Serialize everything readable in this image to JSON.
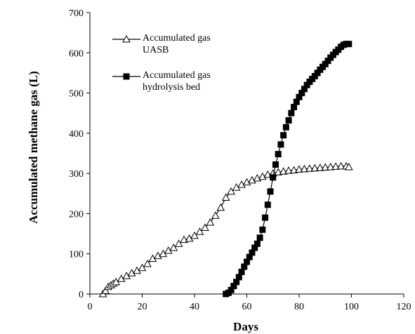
{
  "chart_data": {
    "type": "line",
    "x_label": "Days",
    "y_label": "Accumulated methane gas (L)",
    "xlim": [
      0,
      120
    ],
    "xticks": [
      0,
      20,
      40,
      60,
      80,
      100,
      120
    ],
    "ylim": [
      0,
      700
    ],
    "yticks": [
      0,
      100,
      200,
      300,
      400,
      500,
      600,
      700
    ],
    "legend": "upper left",
    "series": [
      {
        "name": "Accumulated gas UASB",
        "color": "#000000",
        "marker": "triangle",
        "x": [
          5,
          6,
          7,
          8,
          9,
          10,
          12,
          14,
          16,
          18,
          20,
          22,
          24,
          26,
          28,
          30,
          32,
          34,
          36,
          38,
          40,
          42,
          44,
          46,
          48,
          50,
          52,
          54,
          56,
          58,
          60,
          62,
          64,
          66,
          68,
          70,
          72,
          74,
          76,
          78,
          80,
          82,
          84,
          86,
          88,
          90,
          92,
          94,
          96,
          98,
          99
        ],
        "values": [
          0,
          8,
          18,
          22,
          26,
          30,
          38,
          45,
          52,
          58,
          65,
          75,
          88,
          95,
          100,
          108,
          115,
          125,
          135,
          138,
          145,
          155,
          165,
          178,
          195,
          215,
          240,
          255,
          265,
          272,
          278,
          283,
          288,
          292,
          297,
          300,
          303,
          305,
          307,
          308,
          310,
          311,
          312,
          313,
          314,
          315,
          316,
          317,
          318,
          318,
          316
        ]
      },
      {
        "name": "Accumulated gas hydrolysis bed",
        "color": "#000000",
        "marker": "square",
        "x": [
          52,
          53,
          54,
          55,
          56,
          57,
          58,
          59,
          60,
          61,
          62,
          63,
          64,
          65,
          66,
          67,
          68,
          69,
          70,
          71,
          72,
          73,
          74,
          75,
          76,
          77,
          78,
          79,
          80,
          81,
          82,
          83,
          84,
          85,
          86,
          87,
          88,
          89,
          90,
          91,
          92,
          93,
          94,
          95,
          96,
          97,
          98,
          99
        ],
        "values": [
          0,
          3,
          10,
          20,
          30,
          42,
          55,
          68,
          80,
          92,
          103,
          115,
          125,
          140,
          160,
          190,
          222,
          255,
          290,
          322,
          348,
          372,
          395,
          415,
          432,
          450,
          465,
          478,
          490,
          500,
          510,
          520,
          528,
          535,
          542,
          550,
          558,
          565,
          572,
          580,
          588,
          595,
          602,
          608,
          615,
          620,
          622,
          622
        ]
      }
    ]
  }
}
